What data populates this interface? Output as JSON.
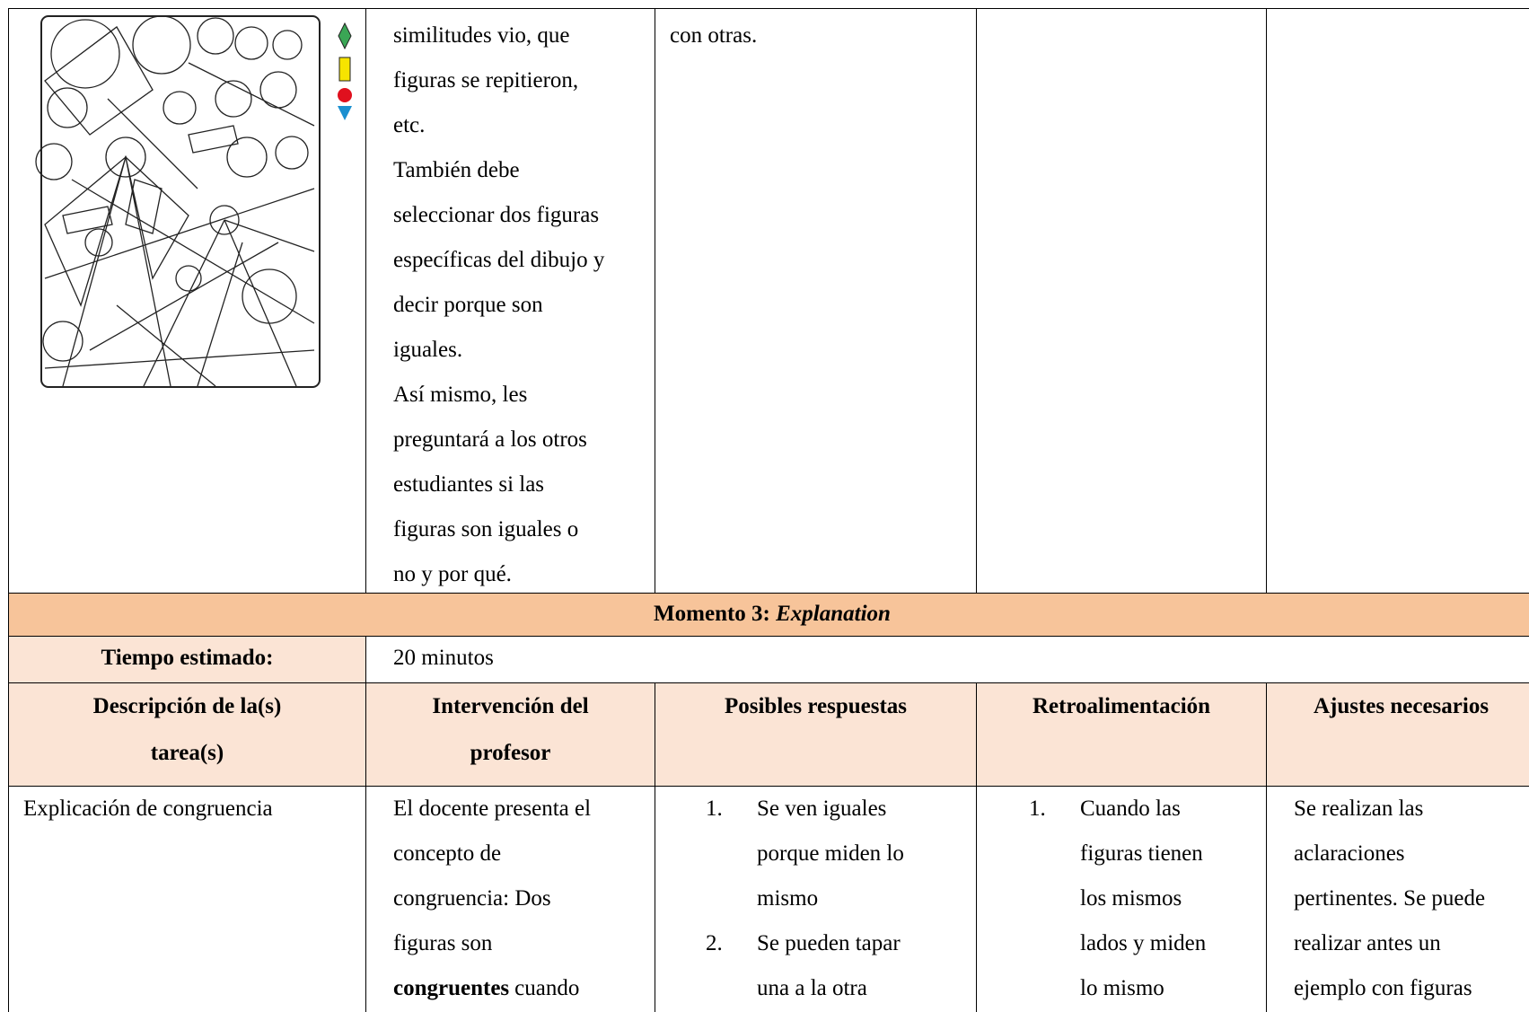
{
  "row1": {
    "intervention": [
      "similitudes vio, que",
      "figuras se repitieron,",
      "etc.",
      "También debe",
      "seleccionar dos figuras",
      "específicas del dibujo y",
      "decir porque son",
      "iguales.",
      "Así mismo, les",
      "preguntará a los otros",
      "estudiantes si las",
      "figuras son iguales o",
      "no y por qué."
    ],
    "responses": [
      "con otras."
    ]
  },
  "moment": {
    "prefix": "Momento 3:",
    "name": "Explanation"
  },
  "time": {
    "label": "Tiempo estimado:",
    "value": "20 minutos"
  },
  "headers": [
    "Descripción de la(s) tarea(s)",
    "Intervención del profesor",
    "Posibles respuestas",
    "Retroalimentación",
    "Ajustes necesarios"
  ],
  "task": {
    "description": [
      "Explicación de congruencia"
    ],
    "intervention": [
      "El docente presenta el",
      "concepto de",
      "congruencia: Dos",
      "figuras son"
    ],
    "intervention_last": {
      "bold": "congruentes",
      "text": "cuando"
    },
    "responses": [
      {
        "number": "1.",
        "lines": [
          "Se ven iguales",
          "porque miden lo",
          "mismo"
        ]
      },
      {
        "number": "2.",
        "lines": [
          "Se pueden tapar",
          "una a la otra"
        ]
      }
    ],
    "feedback": [
      {
        "number": "1.",
        "lines": [
          "Cuando las",
          "figuras tienen",
          "los mismos",
          "lados y miden",
          "lo mismo"
        ]
      }
    ],
    "adjustments": [
      "Se realizan las",
      "aclaraciones",
      "pertinentes. Se puede",
      "realizar antes un",
      "ejemplo con figuras"
    ]
  }
}
